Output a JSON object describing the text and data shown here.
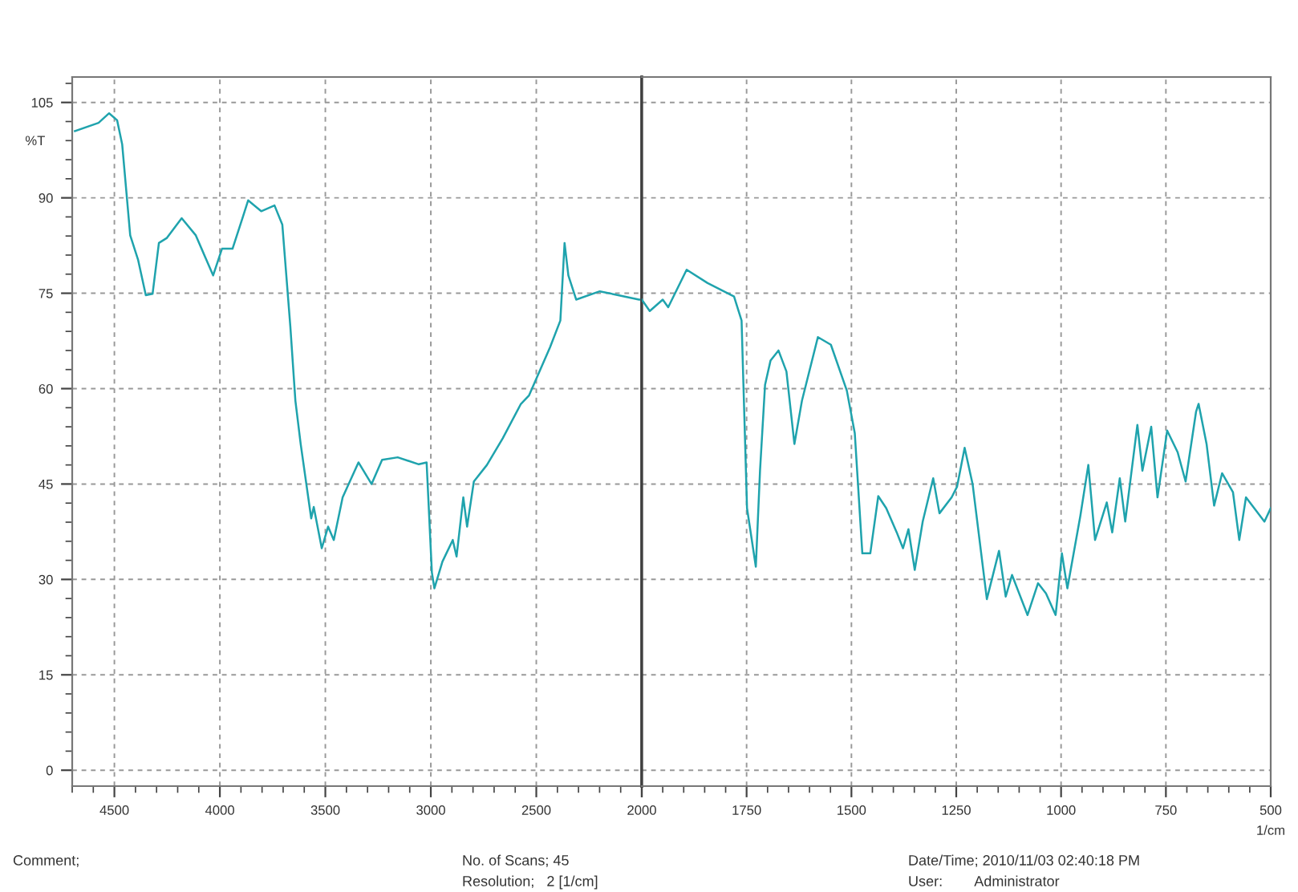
{
  "chart_data": [
    {
      "type": "line",
      "ylabel": "%T",
      "x": [
        4687,
        4575,
        4525,
        4487,
        4463,
        4425,
        4388,
        4351,
        4319,
        4289,
        4251,
        4181,
        4114,
        4032,
        3990,
        3940,
        3890,
        3866,
        3804,
        3741,
        3704,
        3666,
        3642,
        3617,
        3567,
        3555,
        3517,
        3487,
        3460,
        3418,
        3343,
        3281,
        3231,
        3157,
        3057,
        3020,
        2995,
        2983,
        2945,
        2896,
        2878,
        2846,
        2828,
        2796,
        2734,
        2659,
        2573,
        2535,
        2435,
        2386,
        2366,
        2348,
        2311,
        2199,
        2112,
        2013,
        2000
      ],
      "series": [
        {
          "color": "#1fa3ad",
          "values": [
            100.5,
            101.8,
            103.3,
            102.2,
            98.4,
            84.1,
            80.3,
            74.7,
            74.9,
            82.9,
            83.7,
            86.8,
            84.1,
            77.8,
            82.0,
            82.0,
            87.1,
            89.6,
            87.9,
            88.8,
            85.8,
            69.8,
            58.1,
            51.3,
            39.6,
            41.4,
            34.9,
            38.3,
            36.2,
            42.9,
            48.4,
            45.0,
            48.8,
            49.2,
            48.1,
            48.4,
            31.1,
            28.6,
            32.8,
            36.2,
            33.6,
            42.9,
            38.3,
            45.4,
            48.0,
            52.2,
            57.6,
            58.9,
            66.5,
            70.7,
            82.9,
            77.8,
            74.0,
            75.3,
            74.7,
            74.0,
            74.0
          ]
        }
      ],
      "xlim": [
        4700,
        2000
      ],
      "xticks": [
        4500,
        4000,
        3500,
        3000,
        2500,
        2000
      ],
      "ylim": [
        -2.5,
        109
      ],
      "yticks": [
        0,
        15,
        30,
        45,
        60,
        75,
        90,
        105
      ],
      "grid": true,
      "annotations": [
        "Comment;",
        "No. of Scans; 45",
        "Resolution;   2 [1/cm]",
        "Date/Time; 2010/11/03 02:40:18 PM",
        "User:        Administrator"
      ]
    },
    {
      "type": "line",
      "xlabel": "1/cm",
      "x": [
        2000,
        1981,
        1950,
        1937,
        1893,
        1843,
        1780,
        1762,
        1749,
        1728,
        1718,
        1706,
        1693,
        1674,
        1655,
        1636,
        1618,
        1580,
        1549,
        1511,
        1492,
        1474,
        1455,
        1436,
        1417,
        1392,
        1377,
        1364,
        1349,
        1330,
        1305,
        1290,
        1261,
        1248,
        1230,
        1211,
        1177,
        1148,
        1132,
        1117,
        1080,
        1055,
        1036,
        1013,
        998,
        985,
        954,
        935,
        919,
        891,
        878,
        860,
        847,
        818,
        806,
        785,
        770,
        747,
        722,
        703,
        678,
        672,
        653,
        635,
        616,
        590,
        575,
        559,
        515,
        500
      ],
      "series": [
        {
          "color": "#1fa3ad",
          "values": [
            74.0,
            72.2,
            74.0,
            72.8,
            78.7,
            76.6,
            74.5,
            70.7,
            41.2,
            32.0,
            47.1,
            60.6,
            64.4,
            66.0,
            62.7,
            51.3,
            58.1,
            68.1,
            66.9,
            59.7,
            53.0,
            34.1,
            34.1,
            43.1,
            41.2,
            37.4,
            34.9,
            37.9,
            31.5,
            39.1,
            45.9,
            40.4,
            42.9,
            44.6,
            50.7,
            45.0,
            26.9,
            34.5,
            27.3,
            30.7,
            24.4,
            29.4,
            27.8,
            24.4,
            34.1,
            28.6,
            40.0,
            48.0,
            36.2,
            42.1,
            37.4,
            45.9,
            39.1,
            54.3,
            47.1,
            54.0,
            42.9,
            53.4,
            50.0,
            45.4,
            56.4,
            57.6,
            51.3,
            41.6,
            46.7,
            43.7,
            36.2,
            42.9,
            39.1,
            41.2
          ]
        }
      ],
      "xlim": [
        2000,
        500
      ],
      "xticks": [
        {
          "value": 2000,
          "label": null
        },
        1750,
        1500,
        1250,
        1000,
        750,
        500
      ],
      "ylim": [
        -2.5,
        109
      ],
      "yticks": [
        0,
        15,
        30,
        45,
        60,
        75,
        90,
        105
      ],
      "tick_labels": "x",
      "grid": true
    }
  ]
}
